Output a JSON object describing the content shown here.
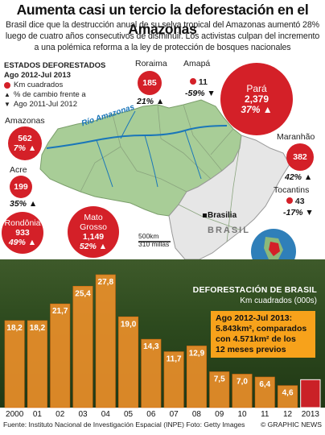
{
  "title": "Aumenta casi un tercio la deforestación en el Amazonas",
  "intro": "Brasil dice que la destrucción anual de su selva tropical del Amazonas aumentó 28% luego de cuatro años consecutivos de disminuir. Los activistas culpan del incremento a una polémica reforma a la ley de protección de bosques nacionales",
  "legend": {
    "title": "Estados deforestados",
    "period": "Ago 2012-Jul 2013",
    "km_label": "Km cuadrados",
    "pct_label": "% de cambio frente a",
    "pct_period": "Ago 2011-Jul 2012"
  },
  "colors": {
    "red": "#d42028",
    "orange": "#f2922a",
    "dark_orange": "#d46a10",
    "map_green": "#a8cd97",
    "highlight_bar": "#d42028",
    "annot_bg": "#f7a21b"
  },
  "states": {
    "roraima": {
      "name": "Roraima",
      "value": "185",
      "pct": "21%"
    },
    "amapa": {
      "name": "Amapá",
      "value": "11",
      "pct": "-59%"
    },
    "para": {
      "name": "Pará",
      "value": "2,379",
      "pct": "37%"
    },
    "amazonas": {
      "name": "Amazonas",
      "value": "562",
      "pct": "7%"
    },
    "acre": {
      "name": "Acre",
      "value": "199",
      "pct": "35%"
    },
    "rondonia": {
      "name": "Rondônia",
      "value": "933",
      "pct": "49%"
    },
    "mato_grosso": {
      "name": "Mato Grosso",
      "value": "1,149",
      "pct": "52%"
    },
    "maranhao": {
      "name": "Maranhão",
      "value": "382",
      "pct": "42%"
    },
    "tocantins": {
      "name": "Tocantins",
      "value": "43",
      "pct": "-17%"
    }
  },
  "map": {
    "river": "Río Amazonas",
    "capital": "Brasilia",
    "country": "BRASIL",
    "scale_km": "500km",
    "scale_mi": "310 millas"
  },
  "chart_data": {
    "type": "bar",
    "title": "Deforestación de Brasil",
    "subtitle": "Km cuadrados (000s)",
    "categories": [
      "2000",
      "01",
      "02",
      "03",
      "04",
      "05",
      "06",
      "07",
      "08",
      "09",
      "10",
      "11",
      "12",
      "2013"
    ],
    "values": [
      18.2,
      18.2,
      21.7,
      25.4,
      27.8,
      19.0,
      14.3,
      11.7,
      12.9,
      7.5,
      7.0,
      6.4,
      4.6,
      5.843
    ],
    "value_labels": [
      "18,2",
      "18,2",
      "21,7",
      "25,4",
      "27,8",
      "19,0",
      "14,3",
      "11,7",
      "12,9",
      "7,5",
      "7,0",
      "6,4",
      "4,6",
      ""
    ],
    "ylim": [
      0,
      30
    ],
    "highlight_index": 13
  },
  "annotation": {
    "line1": "Ago 2012-Jul 2013:",
    "line2": "5.843km², comparados",
    "line3": "con 4.571km² de los",
    "line4": "12 meses previos"
  },
  "source": "Fuente: Instituto Nacional de Investigación Espacial (INPE) Foto: Getty Images",
  "credit": "© GRAPHIC NEWS"
}
